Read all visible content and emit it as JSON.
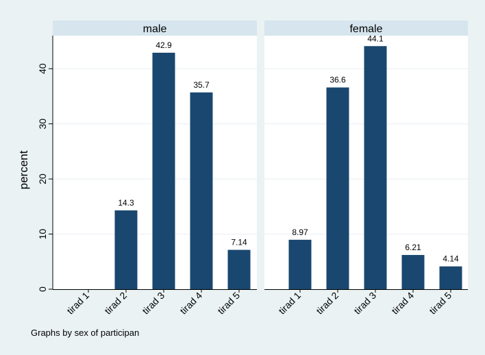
{
  "chart_data": {
    "type": "bar",
    "ylabel": "percent",
    "ylim": [
      0,
      46
    ],
    "yticks": [
      0,
      10,
      20,
      30,
      40
    ],
    "categories": [
      "tirad 1",
      "tirad 2",
      "tirad 3",
      "tirad 4",
      "tirad 5"
    ],
    "panels": [
      {
        "title": "male",
        "values": [
          null,
          14.3,
          42.9,
          35.7,
          7.14
        ],
        "labels": [
          "",
          "14.3",
          "42.9",
          "35.7",
          "7.14"
        ]
      },
      {
        "title": "female",
        "values": [
          8.97,
          36.6,
          44.1,
          6.21,
          4.14
        ],
        "labels": [
          "8.97",
          "36.6",
          "44.1",
          "6.21",
          "4.14"
        ]
      }
    ],
    "note": "Graphs by sex of participan",
    "colors": {
      "background": "#eaf2f3",
      "plot_background": "#ffffff",
      "panel_header": "#d6e5ee",
      "bar": "#1a476f",
      "grid": "#e8eef2",
      "axis": "#000000"
    }
  }
}
